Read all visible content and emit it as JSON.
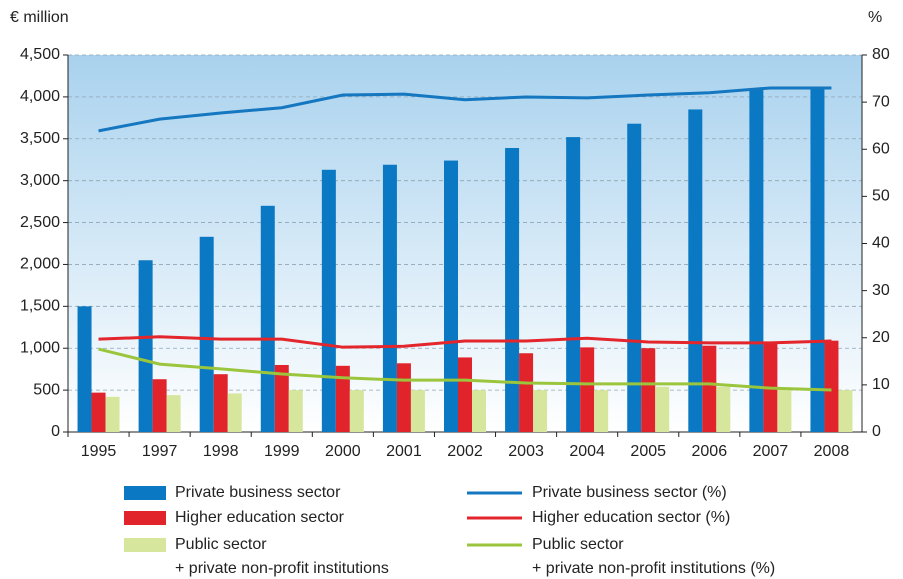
{
  "chart_data": {
    "type": "bar",
    "y_label": "€ million",
    "y2_label": "%",
    "categories": [
      "1995",
      "1997",
      "1998",
      "1999",
      "2000",
      "2001",
      "2002",
      "2003",
      "2004",
      "2005",
      "2006",
      "2007",
      "2008"
    ],
    "series": [
      {
        "name": "Private business sector",
        "type": "bar",
        "color": "#0a78c2",
        "values": [
          1500,
          2050,
          2330,
          2700,
          3130,
          3190,
          3240,
          3390,
          3520,
          3680,
          3850,
          4100,
          4120
        ]
      },
      {
        "name": "Higher education sector",
        "type": "bar",
        "color": "#e1232b",
        "values": [
          470,
          630,
          690,
          800,
          790,
          820,
          890,
          940,
          1010,
          1000,
          1030,
          1080,
          1090
        ]
      },
      {
        "name": "Public sector\n+ private non-profit institutions",
        "type": "bar",
        "color": "#d6e69c",
        "values": [
          420,
          440,
          460,
          500,
          500,
          500,
          500,
          500,
          500,
          540,
          540,
          510,
          500
        ]
      },
      {
        "name": "Private business sector (%)",
        "type": "line",
        "axis": "y2",
        "color": "#1477c0",
        "values": [
          63.9,
          66.4,
          67.7,
          68.8,
          71.5,
          71.7,
          70.5,
          71.1,
          70.9,
          71.5,
          72.0,
          73.0,
          73.0
        ]
      },
      {
        "name": "Higher education sector (%)",
        "type": "line",
        "axis": "y2",
        "color": "#e2262c",
        "values": [
          19.7,
          20.2,
          19.7,
          19.7,
          18.0,
          18.2,
          19.3,
          19.3,
          19.9,
          19.1,
          18.9,
          18.9,
          19.3
        ]
      },
      {
        "name": "Public sector\n+ private non-profit institutions (%)",
        "type": "line",
        "axis": "y2",
        "color": "#9bc53d",
        "values": [
          17.6,
          14.4,
          13.4,
          12.3,
          11.5,
          11.0,
          11.0,
          10.4,
          10.2,
          10.2,
          10.2,
          9.3,
          8.9
        ]
      }
    ],
    "ylim": [
      0,
      4500
    ],
    "yticks": [
      0,
      500,
      {
        "value": 1000,
        "label": "1,000"
      },
      {
        "value": 1500,
        "label": "1,500"
      },
      {
        "value": 2000,
        "label": "2,000"
      },
      {
        "value": 2500,
        "label": "2,500"
      },
      {
        "value": 3000,
        "label": "3,000"
      },
      {
        "value": 3500,
        "label": "3,500"
      },
      {
        "value": 4000,
        "label": "4,000"
      },
      {
        "value": 4500,
        "label": "4,500"
      }
    ],
    "y2lim": [
      0,
      80
    ],
    "y2ticks": [
      0,
      10,
      20,
      30,
      40,
      50,
      60,
      70,
      80
    ],
    "grid": true
  }
}
